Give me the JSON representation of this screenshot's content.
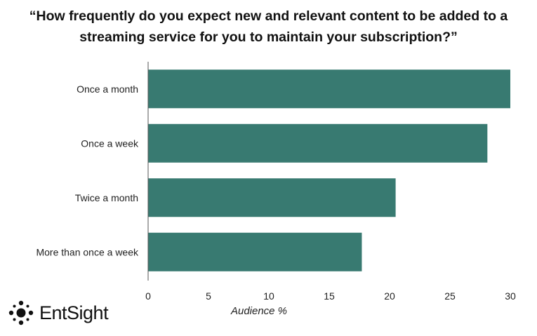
{
  "chart_data": {
    "type": "bar",
    "orientation": "horizontal",
    "title_lines": [
      "“How frequently do you expect new and relevant content to be added to a",
      "streaming service for you to maintain your subscription?”"
    ],
    "categories": [
      "Once a month",
      "Once a week",
      "Twice a month",
      "More than once a week"
    ],
    "values": [
      30,
      28.1,
      20.5,
      17.7
    ],
    "xlabel": "Audience %",
    "ylabel": "",
    "xlim": [
      0,
      30
    ],
    "xticks": [
      "0",
      "5",
      "10",
      "15",
      "20",
      "25",
      "30"
    ],
    "grid": false,
    "bar_color": "#387a71"
  },
  "brand": {
    "logo_text": "EntSight",
    "logo_icon": "dot-cluster-icon"
  }
}
